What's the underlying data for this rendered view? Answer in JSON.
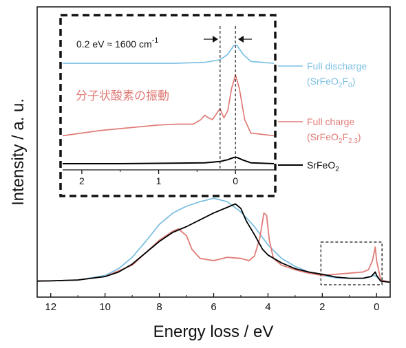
{
  "chart_data": [
    {
      "id": "main",
      "type": "line",
      "xlabel": "Energy loss / eV",
      "ylabel": "Intensity / a. u.",
      "xlim": [
        12.5,
        -0.5
      ],
      "x_reversed": true,
      "x_ticks": [
        12,
        10,
        8,
        6,
        4,
        2,
        0
      ],
      "x_tick_labels": [
        "12",
        "10",
        "8",
        "6",
        "4",
        "2",
        "0"
      ],
      "ylim": [
        0,
        1
      ],
      "y_ticks_shown": false,
      "series": [
        {
          "name": "SrFeO2",
          "color": "#000000",
          "points": [
            [
              12.5,
              0.02
            ],
            [
              12,
              0.022
            ],
            [
              11,
              0.03
            ],
            [
              10,
              0.06
            ],
            [
              9.5,
              0.1
            ],
            [
              9,
              0.17
            ],
            [
              8.5,
              0.27
            ],
            [
              8,
              0.37
            ],
            [
              7.5,
              0.45
            ],
            [
              7,
              0.5
            ],
            [
              6.5,
              0.56
            ],
            [
              6,
              0.62
            ],
            [
              5.5,
              0.67
            ],
            [
              5.2,
              0.7
            ],
            [
              5,
              0.66
            ],
            [
              4.8,
              0.55
            ],
            [
              4.5,
              0.43
            ],
            [
              4.2,
              0.3
            ],
            [
              4,
              0.25
            ],
            [
              3.5,
              0.18
            ],
            [
              3,
              0.13
            ],
            [
              2.5,
              0.1
            ],
            [
              2,
              0.08
            ],
            [
              1.5,
              0.055
            ],
            [
              1,
              0.045
            ],
            [
              0.5,
              0.045
            ],
            [
              0.2,
              0.06
            ],
            [
              0.05,
              0.1
            ],
            [
              0,
              0.07
            ],
            [
              -0.15,
              0.02
            ],
            [
              -0.5,
              0.01
            ]
          ]
        },
        {
          "name": "Full charge (SrFeO2F2.3)",
          "color": "#e07b76",
          "points": [
            [
              12.5,
              0.02
            ],
            [
              12,
              0.022
            ],
            [
              11,
              0.03
            ],
            [
              10,
              0.06
            ],
            [
              9,
              0.16
            ],
            [
              8.5,
              0.27
            ],
            [
              8,
              0.38
            ],
            [
              7.5,
              0.46
            ],
            [
              7.3,
              0.48
            ],
            [
              7,
              0.42
            ],
            [
              6.8,
              0.3
            ],
            [
              6.5,
              0.22
            ],
            [
              6,
              0.2
            ],
            [
              5.5,
              0.23
            ],
            [
              5,
              0.22
            ],
            [
              4.7,
              0.2
            ],
            [
              4.5,
              0.24
            ],
            [
              4.3,
              0.4
            ],
            [
              4.15,
              0.62
            ],
            [
              4.05,
              0.6
            ],
            [
              3.95,
              0.38
            ],
            [
              3.8,
              0.22
            ],
            [
              3.5,
              0.16
            ],
            [
              3,
              0.12
            ],
            [
              2.5,
              0.09
            ],
            [
              2,
              0.07
            ],
            [
              1.5,
              0.08
            ],
            [
              1,
              0.09
            ],
            [
              0.5,
              0.1
            ],
            [
              0.3,
              0.12
            ],
            [
              0.15,
              0.2
            ],
            [
              0.05,
              0.32
            ],
            [
              0,
              0.2
            ],
            [
              -0.15,
              0.03
            ],
            [
              -0.5,
              0.01
            ]
          ]
        },
        {
          "name": "Full discharge (SrFeO2F0)",
          "color": "#7cc0e2",
          "points": [
            [
              12.5,
              0.02
            ],
            [
              12,
              0.022
            ],
            [
              11,
              0.03
            ],
            [
              10,
              0.07
            ],
            [
              9.5,
              0.13
            ],
            [
              9,
              0.23
            ],
            [
              8.5,
              0.37
            ],
            [
              8,
              0.52
            ],
            [
              7.5,
              0.62
            ],
            [
              7,
              0.68
            ],
            [
              6.5,
              0.72
            ],
            [
              6,
              0.75
            ],
            [
              5.5,
              0.72
            ],
            [
              5,
              0.63
            ],
            [
              4.5,
              0.5
            ],
            [
              4,
              0.34
            ],
            [
              3.5,
              0.22
            ],
            [
              3,
              0.15
            ],
            [
              2.5,
              0.1
            ],
            [
              2,
              0.07
            ],
            [
              1.5,
              0.05
            ],
            [
              1,
              0.045
            ],
            [
              0.5,
              0.045
            ],
            [
              0.1,
              0.07
            ],
            [
              0,
              0.06
            ],
            [
              -0.15,
              0.02
            ],
            [
              -0.5,
              0.01
            ]
          ]
        }
      ],
      "box_region": {
        "x": [
          2.05,
          -0.2
        ],
        "style": "dashed"
      }
    },
    {
      "id": "inset",
      "type": "line",
      "xlim": [
        2.25,
        -0.5
      ],
      "x_reversed": true,
      "x_ticks": [
        2,
        1,
        0
      ],
      "x_tick_labels": [
        "2",
        "1",
        "0"
      ],
      "vlines": [
        0.2,
        0
      ],
      "series": [
        {
          "name": "Full discharge (SrFeO2F0)",
          "color": "#7cc0e2",
          "offset": 1.0,
          "points": [
            [
              2.25,
              0.0
            ],
            [
              1.5,
              0.0
            ],
            [
              0.8,
              0.0
            ],
            [
              0.4,
              0.01
            ],
            [
              0.2,
              0.04
            ],
            [
              0.1,
              0.1
            ],
            [
              0.02,
              0.2
            ],
            [
              -0.02,
              0.2
            ],
            [
              -0.1,
              0.1
            ],
            [
              -0.2,
              0.02
            ],
            [
              -0.5,
              0.0
            ]
          ]
        },
        {
          "name": "Full charge (SrFeO2F2.3)",
          "color": "#e07b76",
          "offset": 0.4,
          "points": [
            [
              2.25,
              0.02
            ],
            [
              2.0,
              0.05
            ],
            [
              1.75,
              0.08
            ],
            [
              1.5,
              0.1
            ],
            [
              1.25,
              0.12
            ],
            [
              1.0,
              0.14
            ],
            [
              0.75,
              0.15
            ],
            [
              0.55,
              0.15
            ],
            [
              0.45,
              0.2
            ],
            [
              0.4,
              0.25
            ],
            [
              0.35,
              0.22
            ],
            [
              0.3,
              0.2
            ],
            [
              0.22,
              0.3
            ],
            [
              0.2,
              0.32
            ],
            [
              0.15,
              0.22
            ],
            [
              0.1,
              0.3
            ],
            [
              0.05,
              0.55
            ],
            [
              0.0,
              0.7
            ],
            [
              -0.05,
              0.55
            ],
            [
              -0.12,
              0.2
            ],
            [
              -0.2,
              0.05
            ],
            [
              -0.5,
              0.02
            ]
          ]
        },
        {
          "name": "SrFeO2",
          "color": "#000000",
          "offset": 0.0,
          "points": [
            [
              2.25,
              0.0
            ],
            [
              1.5,
              0.0
            ],
            [
              0.8,
              0.005
            ],
            [
              0.4,
              0.01
            ],
            [
              0.2,
              0.025
            ],
            [
              0.1,
              0.045
            ],
            [
              0.02,
              0.07
            ],
            [
              -0.02,
              0.07
            ],
            [
              -0.1,
              0.04
            ],
            [
              -0.2,
              0.01
            ],
            [
              -0.5,
              0.0
            ]
          ]
        }
      ],
      "annotation": {
        "parts": [
          "0.2 eV ≈ 1600 cm",
          "-1"
        ]
      },
      "japanese_label": "分子状酸素の振動"
    }
  ],
  "legend": [
    {
      "line1": "Full discharge",
      "line2_base": "(SrFeO",
      "line2_sub1": "2",
      "line2_mid": "F",
      "line2_sub2": "0",
      "line2_end": ")",
      "color": "#7cc0e2"
    },
    {
      "line1": "Full charge",
      "line2_base": "(SrFeO",
      "line2_sub1": "2",
      "line2_mid": "F",
      "line2_sub2": "2.3",
      "line2_end": ")",
      "color": "#e07b76"
    },
    {
      "line1_base": "SrFeO",
      "line1_sub": "2",
      "color": "#000000"
    }
  ]
}
